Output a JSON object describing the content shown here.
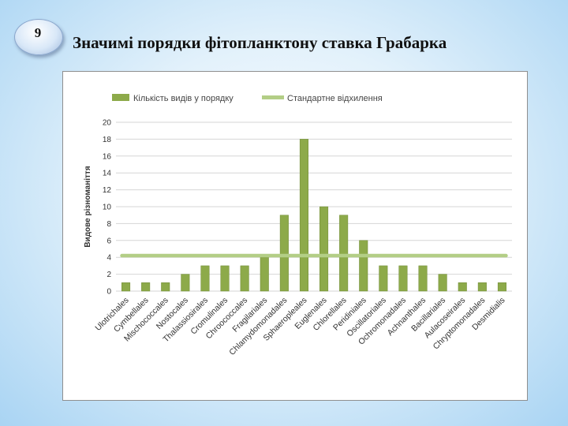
{
  "slide": {
    "number": "9",
    "title": "Значимі порядки фітопланктону ставка Грабарка"
  },
  "colors": {
    "bar": "#8daa4a",
    "bar_edge": "#6f8a34",
    "std_line": "#b3ce86",
    "grid": "#d6d6d6"
  },
  "chart_data": {
    "type": "bar",
    "ylabel": "Видове різноманіття",
    "ylim": [
      0,
      20
    ],
    "yticks": [
      0,
      2,
      4,
      6,
      8,
      10,
      12,
      14,
      16,
      18,
      20
    ],
    "grid": true,
    "legend_position": "top",
    "categories": [
      "Ulotrichales",
      "Cymbellales",
      "Mischococcales",
      "Nostocales",
      "Thalassiosirales",
      "Cromulinales",
      "Chroococcales",
      "Fragilariales",
      "Chlamydomonadales",
      "Sphaeropleales",
      "Euglenales",
      "Chlorellales",
      "Peridiniales",
      "Oscillatoriales",
      "Ochromonadales",
      "Achnanthales",
      "Bacillariales",
      "Aulacoseirales",
      "Chryptomonadales",
      "Desmidialis"
    ],
    "series": [
      {
        "name": "Кількість видів у порядку",
        "type": "bar",
        "values": [
          1,
          1,
          1,
          2,
          3,
          3,
          3,
          4,
          9,
          18,
          10,
          9,
          6,
          3,
          3,
          3,
          2,
          1,
          1,
          1
        ]
      },
      {
        "name": "Стандартне відхилення",
        "type": "line",
        "value": 4.2
      }
    ]
  }
}
